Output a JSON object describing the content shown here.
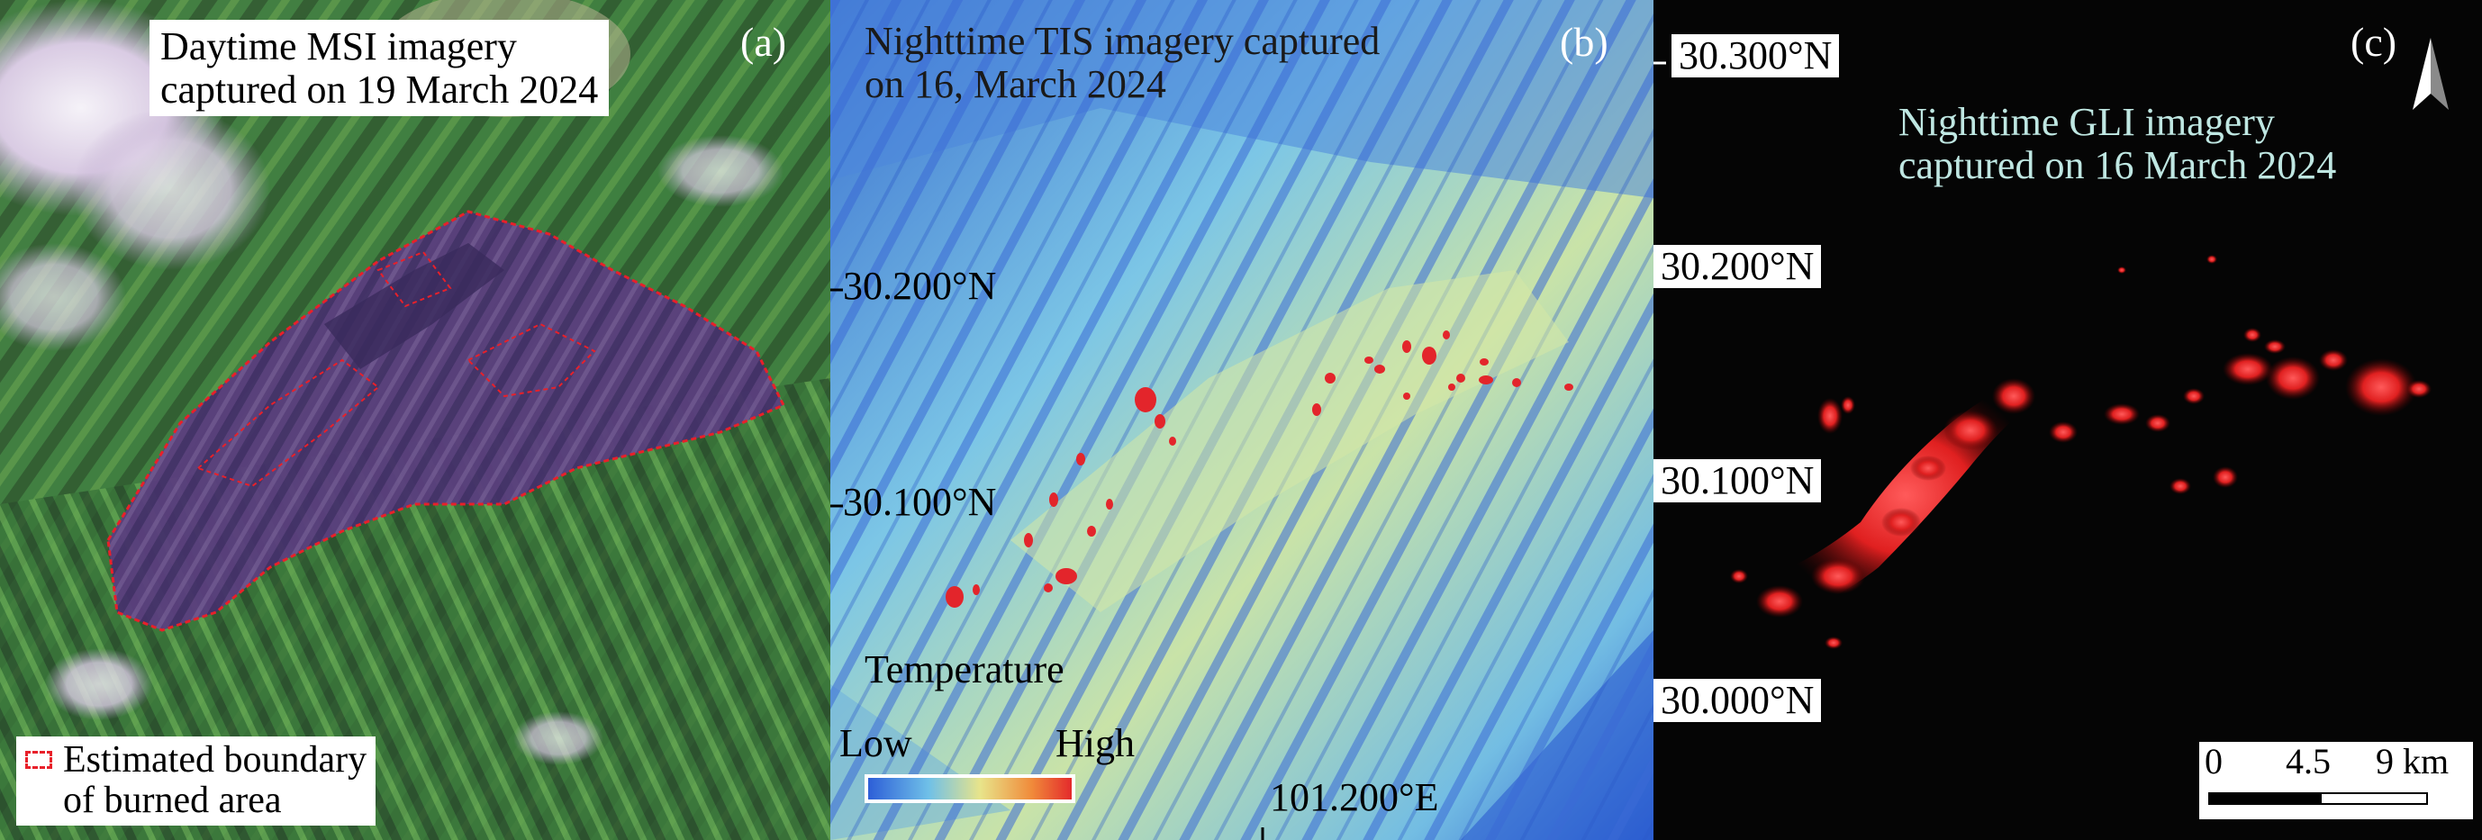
{
  "panels": {
    "a": {
      "letter": "(a)",
      "title_line1": "Daytime MSI imagery",
      "title_line2": "captured on 19 March 2024",
      "legend_line1": "Estimated boundary",
      "legend_line2": "of burned area",
      "legend_color": "#e8202a"
    },
    "b": {
      "letter": "(b)",
      "title_line1": "Nighttime TIS imagery captured",
      "title_line2": "on 16, March 2024",
      "lat_200": "30.200°N",
      "lat_100": "30.100°N",
      "lon_200": "101.200°E",
      "colorbar_title": "Temperature",
      "colorbar_low": "Low",
      "colorbar_high": "High",
      "colorbar_colors": [
        "#2b5bd7",
        "#6fc0e8",
        "#e8e48a",
        "#f08a3a",
        "#e3252b"
      ]
    },
    "c": {
      "letter": "(c)",
      "title_line1": "Nighttime GLI imagery",
      "title_line2": "captured on 16 March 2024",
      "title_color": "#bfe7e2",
      "lat_300": "30.300°N",
      "lat_200": "30.200°N",
      "lat_100": "30.100°N",
      "lat_000": "30.000°N",
      "scale_0": "0",
      "scale_45": "4.5",
      "scale_9": "9 km",
      "north_arrow": "north-arrow"
    }
  }
}
